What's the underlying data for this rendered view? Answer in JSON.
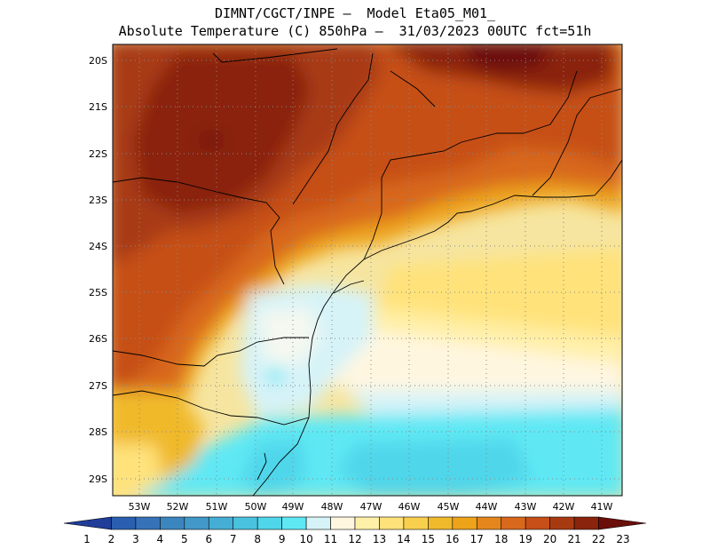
{
  "header": {
    "line1": "DIMNT/CGCT/INPE –  Model Eta05_M01_",
    "line2": "Absolute Temperature (C) 850hPa –  31/03/2023 00UTC fct=51h"
  },
  "axes": {
    "lat_labels": [
      "20S",
      "21S",
      "22S",
      "23S",
      "24S",
      "25S",
      "26S",
      "27S",
      "28S",
      "29S"
    ],
    "lon_labels": [
      "53W",
      "52W",
      "51W",
      "50W",
      "49W",
      "48W",
      "47W",
      "46W",
      "45W",
      "44W",
      "43W",
      "42W",
      "41W"
    ]
  },
  "colorbar": {
    "levels": [
      "1",
      "2",
      "3",
      "4",
      "5",
      "6",
      "7",
      "8",
      "9",
      "10",
      "11",
      "12",
      "13",
      "14",
      "15",
      "16",
      "17",
      "18",
      "19",
      "20",
      "21",
      "22",
      "23"
    ],
    "colors": [
      "#1f3d99",
      "#2a5fb0",
      "#3572b8",
      "#3c86c0",
      "#4298c8",
      "#45aed4",
      "#49c2de",
      "#4fd6ea",
      "#5ee8f4",
      "#d6f3f8",
      "#fff6e0",
      "#fff0a8",
      "#ffe27a",
      "#f8d04e",
      "#f0b92c",
      "#eda31a",
      "#e5861c",
      "#d8681c",
      "#c65018",
      "#a83a12",
      "#8a240c",
      "#6a0e0a"
    ]
  },
  "map": {
    "description_colors": {
      "land_outline": "#000000",
      "grid": "#888888"
    }
  }
}
